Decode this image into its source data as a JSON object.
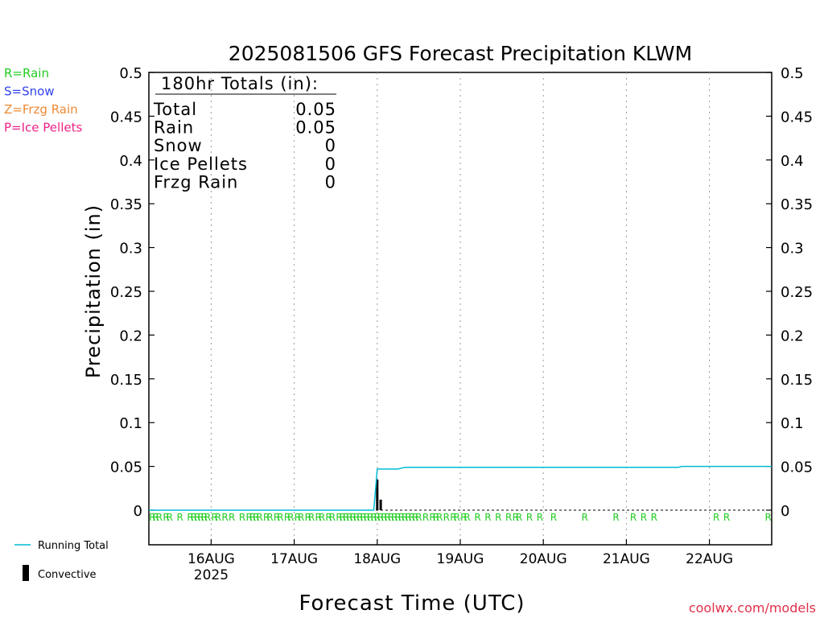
{
  "chart_data": {
    "type": "bar",
    "title": "2025081506 GFS Forecast Precipitation KLWM",
    "xlabel": "Forecast Time (UTC)",
    "ylabel": "Precipitation (in)",
    "ylim": [
      0,
      0.5
    ],
    "yticks": [
      "0",
      "0.05",
      "0.1",
      "0.15",
      "0.2",
      "0.25",
      "0.3",
      "0.35",
      "0.4",
      "0.45",
      "0.5"
    ],
    "xlim_hours_from_16AUG00": [
      -18,
      162
    ],
    "xticks": [
      {
        "label": "16AUG",
        "sub": "2025",
        "hour": 0
      },
      {
        "label": "17AUG",
        "sub": "",
        "hour": 24
      },
      {
        "label": "18AUG",
        "sub": "",
        "hour": 48
      },
      {
        "label": "19AUG",
        "sub": "",
        "hour": 72
      },
      {
        "label": "20AUG",
        "sub": "",
        "hour": 96
      },
      {
        "label": "21AUG",
        "sub": "",
        "hour": 120
      },
      {
        "label": "22AUG",
        "sub": "",
        "hour": 144
      }
    ],
    "grid": "vertical dotted at day boundaries",
    "legend_placement": "bottom-left",
    "precip_type_key": [
      {
        "text": "R=Rain",
        "color": "#22cc22"
      },
      {
        "text": "S=Snow",
        "color": "#3344ee"
      },
      {
        "text": "Z=Frzg Rain",
        "color": "#ee8833"
      },
      {
        "text": "P=Ice Pellets",
        "color": "#ee2288"
      }
    ],
    "series": [
      {
        "name": "Running Total",
        "color": "#00bcd4",
        "points": [
          [
            -18,
            0
          ],
          [
            47,
            0
          ],
          [
            48,
            0.047
          ],
          [
            54,
            0.047
          ],
          [
            56,
            0.049
          ],
          [
            135,
            0.049
          ],
          [
            136,
            0.05
          ],
          [
            162,
            0.05
          ]
        ]
      },
      {
        "name": "Convective",
        "color": "#000000",
        "bars": [
          [
            48,
            0.035
          ],
          [
            49,
            0.012
          ]
        ]
      }
    ],
    "type_markers": {
      "letter": "R",
      "color": "#22cc22",
      "hours": [
        -17,
        -16,
        -15,
        -13,
        -12,
        -9,
        -6,
        -5,
        -4,
        -3,
        -2,
        -1,
        1,
        2,
        4,
        6,
        9,
        11,
        12,
        13,
        14,
        16,
        17,
        19,
        20,
        22,
        23,
        25,
        26,
        28,
        29,
        31,
        32,
        34,
        35,
        37,
        38,
        39,
        40,
        41,
        42,
        43,
        44,
        45,
        46,
        47,
        48,
        49,
        50,
        51,
        52,
        53,
        54,
        55,
        56,
        57,
        58,
        59,
        60,
        62,
        64,
        65,
        66,
        68,
        70,
        71,
        73,
        74,
        77,
        80,
        83,
        86,
        88,
        89,
        92,
        95,
        99,
        108,
        117,
        122,
        125,
        128,
        146,
        149,
        161
      ]
    },
    "totals_box": {
      "heading": "180hr Totals (in):",
      "rows": [
        {
          "label": "Total",
          "value": "0.05"
        },
        {
          "label": "Rain",
          "value": "0.05"
        },
        {
          "label": "Snow",
          "value": "0"
        },
        {
          "label": "Ice Pellets",
          "value": "0"
        },
        {
          "label": "Frzg Rain",
          "value": "0"
        }
      ]
    },
    "credit": "coolwx.com/models"
  }
}
